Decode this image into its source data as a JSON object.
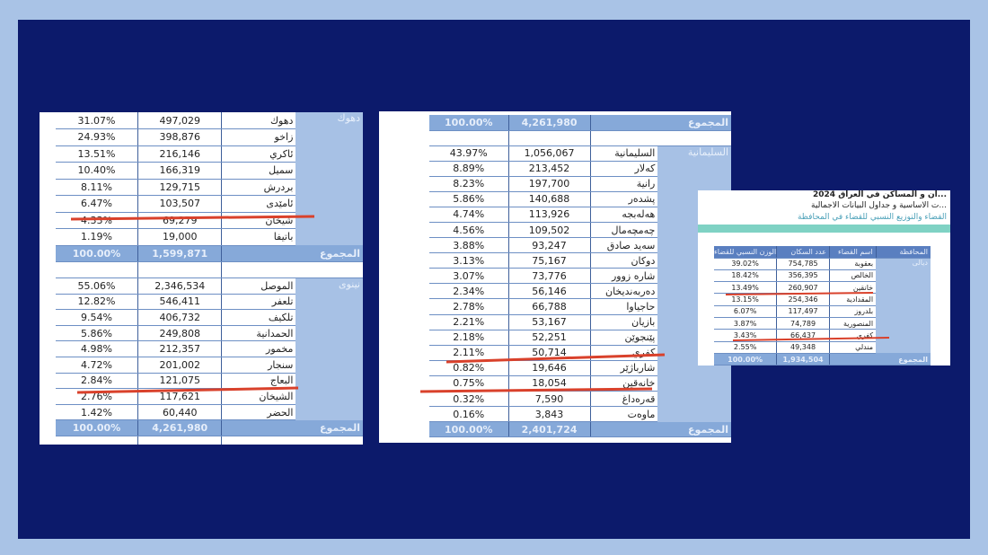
{
  "colors": {
    "background": "#a9c3e6",
    "frame": "#0c1a6b",
    "province_cell": "#a7c1e5",
    "total_row": "#86a9d9",
    "underline": "#d9412b"
  },
  "left": {
    "dahuk": {
      "province": "دهوك",
      "rows": [
        [
          "31.07%",
          "497,029",
          "دهوك"
        ],
        [
          "24.93%",
          "398,876",
          "زاخو"
        ],
        [
          "13.51%",
          "216,146",
          "ئاكري"
        ],
        [
          "10.40%",
          "166,319",
          "سميل"
        ],
        [
          "8.11%",
          "129,715",
          "بردرش"
        ],
        [
          "6.47%",
          "103,507",
          "ئامێدی"
        ],
        [
          "4.33%",
          "69,279",
          "شيخان"
        ],
        [
          "1.19%",
          "19,000",
          "باتيفا"
        ]
      ],
      "total": [
        "100.00%",
        "1,599,871",
        "المجموع"
      ]
    },
    "nineveh": {
      "province": "نينوى",
      "rows": [
        [
          "55.06%",
          "2,346,534",
          "الموصل"
        ],
        [
          "12.82%",
          "546,411",
          "تلعفر"
        ],
        [
          "9.54%",
          "406,732",
          "تلكيف"
        ],
        [
          "5.86%",
          "249,808",
          "الحمدانية"
        ],
        [
          "4.98%",
          "212,357",
          "مخمور"
        ],
        [
          "4.72%",
          "201,002",
          "سنجار"
        ],
        [
          "2.84%",
          "121,075",
          "البعاج"
        ],
        [
          "2.76%",
          "117,621",
          "الشيخان"
        ],
        [
          "1.42%",
          "60,440",
          "الحضر"
        ]
      ],
      "total": [
        "100.00%",
        "4,261,980",
        "المجموع"
      ]
    }
  },
  "middle": {
    "top_total": [
      "100.00%",
      "4,261,980",
      "المجموع"
    ],
    "sulaymaniyah": {
      "province": "السليمانية",
      "rows": [
        [
          "43.97%",
          "1,056,067",
          "السليمانية"
        ],
        [
          "8.89%",
          "213,452",
          "كەلار"
        ],
        [
          "8.23%",
          "197,700",
          "رانية"
        ],
        [
          "5.86%",
          "140,688",
          "پشدەر"
        ],
        [
          "4.74%",
          "113,926",
          "هەلەبجە"
        ],
        [
          "4.56%",
          "109,502",
          "چەمچەمال"
        ],
        [
          "3.88%",
          "93,247",
          "سەید صادق"
        ],
        [
          "3.13%",
          "75,167",
          "دوكان"
        ],
        [
          "3.07%",
          "73,776",
          "شارە زوور"
        ],
        [
          "2.34%",
          "56,146",
          "دەربەندیخان"
        ],
        [
          "2.78%",
          "66,788",
          "حاجیاوا"
        ],
        [
          "2.21%",
          "53,167",
          "بازیان"
        ],
        [
          "2.18%",
          "52,251",
          "پێنجوێن"
        ],
        [
          "2.11%",
          "50,714",
          "كفري"
        ],
        [
          "0.82%",
          "19,646",
          "شارباژێر"
        ],
        [
          "0.75%",
          "18,054",
          "خانەقین"
        ],
        [
          "0.32%",
          "7,590",
          "قەرەداغ"
        ],
        [
          "0.16%",
          "3,843",
          "ماوەت"
        ]
      ],
      "total": [
        "100.00%",
        "2,401,724",
        "المجموع"
      ]
    }
  },
  "right": {
    "title_lines": [
      "...ان و المساكن في العراق 2024",
      "...ت الاساسية و جداول البيانات الاجمالية",
      "القضاء والتوزيع النسبي للقضاء في المحافظة"
    ],
    "headers": [
      "الوزن النسبي للقضاء",
      "عدد السكان",
      "اسم القضاء",
      "المحافظة"
    ],
    "diyala": {
      "province": "ديالى",
      "rows": [
        [
          "39.02%",
          "754,785",
          "بعقوبة"
        ],
        [
          "18.42%",
          "356,395",
          "الخالص"
        ],
        [
          "13.49%",
          "260,907",
          "خانقين"
        ],
        [
          "13.15%",
          "254,346",
          "المقدادية"
        ],
        [
          "6.07%",
          "117,497",
          "بلدروز"
        ],
        [
          "3.87%",
          "74,789",
          "المنصورية"
        ],
        [
          "3.43%",
          "66,437",
          "كفري"
        ],
        [
          "2.55%",
          "49,348",
          "مندلي"
        ]
      ],
      "total": [
        "100.00%",
        "1,934,504",
        "المجموع"
      ]
    }
  }
}
